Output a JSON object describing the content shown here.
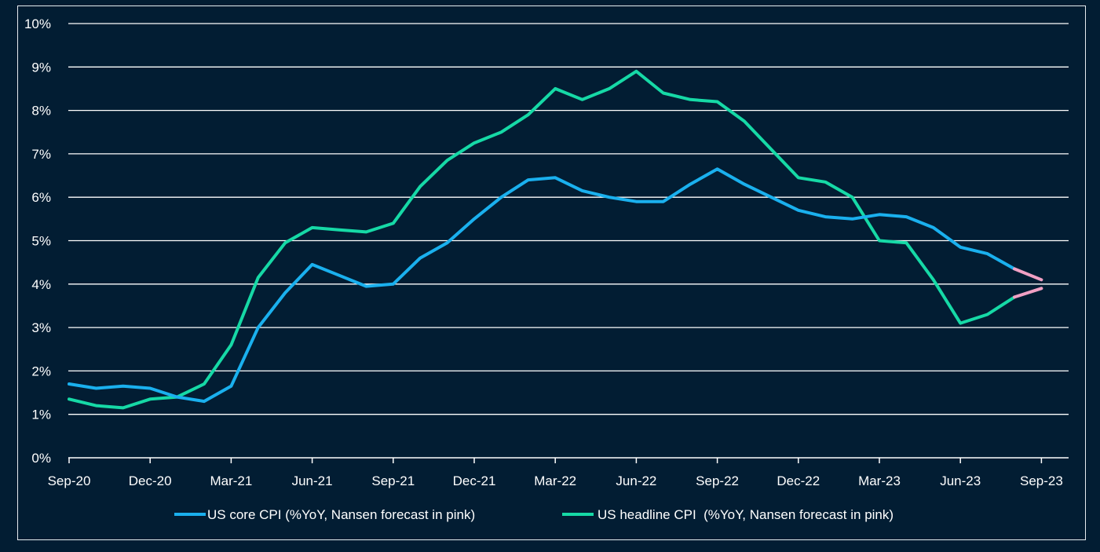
{
  "colors": {
    "background": "#021d33",
    "gridline": "#ffffff",
    "core": "#1ab0ee",
    "headline": "#16d9a6",
    "forecast": "#f1a0c4",
    "text": "#ffffff"
  },
  "chart_data": {
    "type": "line",
    "title": "",
    "xlabel": "",
    "ylabel": "",
    "ylim": [
      0,
      10
    ],
    "y_ticks": [
      "0%",
      "1%",
      "2%",
      "3%",
      "4%",
      "5%",
      "6%",
      "7%",
      "8%",
      "9%",
      "10%"
    ],
    "x_tick_labels": [
      "Sep-20",
      "Dec-20",
      "Mar-21",
      "Jun-21",
      "Sep-21",
      "Dec-21",
      "Mar-22",
      "Jun-22",
      "Sep-22",
      "Dec-22",
      "Mar-23",
      "Jun-23",
      "Sep-23"
    ],
    "x": [
      "Sep-20",
      "Oct-20",
      "Nov-20",
      "Dec-20",
      "Jan-21",
      "Feb-21",
      "Mar-21",
      "Apr-21",
      "May-21",
      "Jun-21",
      "Jul-21",
      "Aug-21",
      "Sep-21",
      "Oct-21",
      "Nov-21",
      "Dec-21",
      "Jan-22",
      "Feb-22",
      "Mar-22",
      "Apr-22",
      "May-22",
      "Jun-22",
      "Jul-22",
      "Aug-22",
      "Sep-22",
      "Oct-22",
      "Nov-22",
      "Dec-22",
      "Jan-23",
      "Feb-23",
      "Mar-23",
      "Apr-23",
      "May-23",
      "Jun-23",
      "Jul-23",
      "Aug-23",
      "Sep-23"
    ],
    "forecast_from_index": 35,
    "legend_position": "bottom",
    "series": [
      {
        "name": "US core CPI (%YoY, Nansen forecast in pink)",
        "key": "core",
        "values": [
          1.7,
          1.6,
          1.65,
          1.6,
          1.4,
          1.3,
          1.65,
          3.0,
          3.8,
          4.45,
          4.2,
          3.95,
          4.0,
          4.6,
          4.95,
          5.5,
          6.0,
          6.4,
          6.45,
          6.15,
          6.0,
          5.9,
          5.9,
          6.3,
          6.65,
          6.3,
          6.0,
          5.7,
          5.55,
          5.5,
          5.6,
          5.55,
          5.3,
          4.85,
          4.7,
          4.35,
          4.1
        ]
      },
      {
        "name": "US headline CPI  (%YoY, Nansen forecast in pink)",
        "key": "headline",
        "values": [
          1.35,
          1.2,
          1.15,
          1.35,
          1.4,
          1.7,
          2.6,
          4.15,
          4.95,
          5.3,
          5.25,
          5.2,
          5.4,
          6.25,
          6.85,
          7.25,
          7.5,
          7.9,
          8.5,
          8.25,
          8.5,
          8.9,
          8.4,
          8.25,
          8.2,
          7.75,
          7.1,
          6.45,
          6.35,
          6.0,
          5.0,
          4.95,
          4.1,
          3.1,
          3.3,
          3.7,
          3.9
        ]
      }
    ]
  }
}
